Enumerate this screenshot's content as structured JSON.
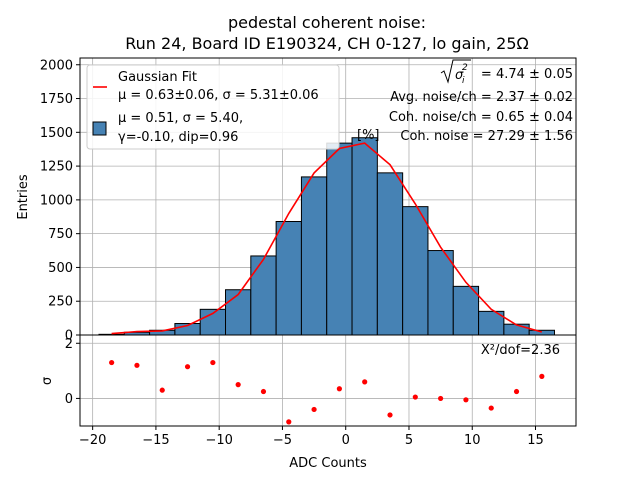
{
  "chart_data": {
    "type": "bar",
    "title_line1": "pedestal coherent noise:",
    "title_line2": "Run 24, Board ID E190324, CH 0-127, lo gain, 25Ω",
    "xlabel": "ADC Counts",
    "ylabel": "Entries",
    "residual_ylabel": "σ",
    "xlim": [
      -21,
      18.2
    ],
    "ylim": [
      0,
      2050
    ],
    "residual_ylim": [
      -1.0,
      2.3
    ],
    "x_ticks": [
      -20,
      -15,
      -10,
      -5,
      0,
      5,
      10,
      15
    ],
    "y_ticks": [
      0,
      250,
      500,
      750,
      1000,
      1250,
      1500,
      1750,
      2000
    ],
    "residual_y_ticks": [
      0,
      2
    ],
    "grid": true,
    "legend_position": "top-left",
    "legend": {
      "fit_label": "Gaussian Fit",
      "fit_params": "μ = 0.63±0.06, σ = 5.31±0.06",
      "hist_line1": "μ = 0.51, σ = 5.40,",
      "hist_line2": "γ=-0.10, dip=0.96"
    },
    "info": {
      "sigma_sum": "= 4.74 ± 0.05",
      "avg_noise": "Avg. noise/ch = 2.37 ± 0.02",
      "coh_noise": "Coh. noise/ch = 0.65 ± 0.04",
      "pct_prefix": "[%]",
      "pct_coh": "Coh. noise = 27.29  ± 1.56"
    },
    "chi2_label": "X²/dof=2.36",
    "histogram": {
      "bin_edges": [
        -19.5,
        -17.5,
        -15.5,
        -13.5,
        -11.5,
        -9.5,
        -7.5,
        -5.5,
        -3.5,
        -1.5,
        0.5,
        2.5,
        4.5,
        6.5,
        8.5,
        10.5,
        12.5,
        14.5,
        16.5
      ],
      "counts": [
        5,
        20,
        35,
        85,
        190,
        335,
        585,
        840,
        1170,
        1420,
        1460,
        1200,
        950,
        625,
        360,
        175,
        80,
        35
      ]
    },
    "fit_curve": {
      "x": [
        -18.5,
        -16.5,
        -14.5,
        -12.5,
        -10.5,
        -8.5,
        -6.5,
        -4.5,
        -2.5,
        -0.5,
        1.5,
        3.5,
        5.5,
        7.5,
        9.5,
        11.5,
        13.5,
        15.5
      ],
      "y": [
        10,
        25,
        30,
        70,
        160,
        300,
        560,
        900,
        1200,
        1380,
        1420,
        1260,
        970,
        650,
        390,
        190,
        75,
        22
      ]
    },
    "residuals": {
      "x": [
        -18.5,
        -16.5,
        -14.5,
        -12.5,
        -10.5,
        -8.5,
        -6.5,
        -4.5,
        -2.5,
        -0.5,
        1.5,
        3.5,
        5.5,
        7.5,
        9.5,
        11.5,
        13.5,
        15.5
      ],
      "y": [
        1.3,
        1.2,
        0.3,
        1.15,
        1.3,
        0.5,
        0.25,
        -0.85,
        -0.4,
        0.35,
        0.6,
        -0.6,
        0.05,
        0.0,
        -0.05,
        -0.35,
        0.25,
        0.8
      ]
    }
  }
}
